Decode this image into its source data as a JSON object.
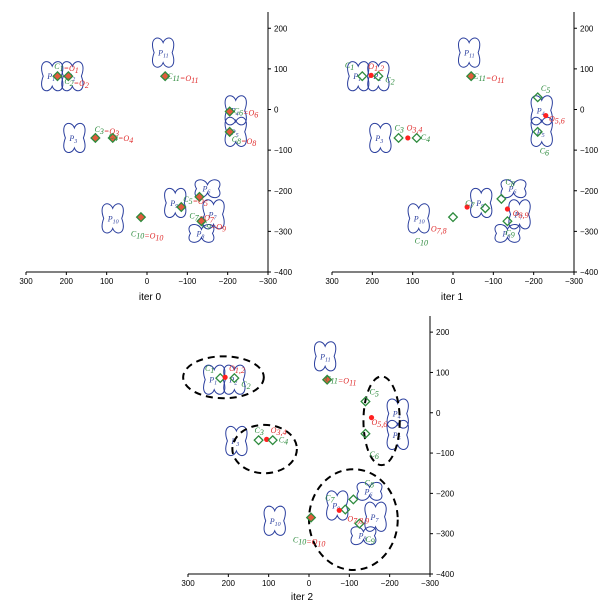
{
  "panels": [
    {
      "caption": "iter 0",
      "xticks": [
        "300",
        "200",
        "100",
        "0",
        "−100",
        "−200",
        "−300"
      ],
      "yticks": [
        "200",
        "100",
        "0",
        "−100",
        "−200",
        "−300",
        "−400"
      ],
      "agents": [
        "P1",
        "P2",
        "P3",
        "P4",
        "P5",
        "P6",
        "P7",
        "P8",
        "P9",
        "P10",
        "P11"
      ],
      "labels": [
        "C1=O1",
        "C2=O2",
        "C3=O3",
        "C4=O4",
        "C5=O5",
        "C6=O6",
        "C7=O7",
        "C8=O8",
        "C9=O9",
        "C10=O10",
        "C11=O11"
      ]
    },
    {
      "caption": "iter 1",
      "xticks": [
        "300",
        "200",
        "100",
        "0",
        "−100",
        "−200",
        "−300"
      ],
      "yticks": [
        "200",
        "100",
        "0",
        "−100",
        "−200",
        "−300",
        "−400"
      ],
      "agents": [
        "P1",
        "P2",
        "P3",
        "P4",
        "P5",
        "P6",
        "P7",
        "P8",
        "P9",
        "P10",
        "P11"
      ],
      "labels": [
        "C1",
        "O1,2",
        "C2",
        "C3",
        "O3,4",
        "C4",
        "C5",
        "O5,6",
        "C6",
        "C7",
        "C8",
        "O7,8",
        "O8,9",
        "C9",
        "C10",
        "C11=O11"
      ]
    },
    {
      "caption": "iter 2",
      "xticks": [
        "300",
        "200",
        "100",
        "0",
        "−100",
        "−200",
        "−300"
      ],
      "yticks": [
        "200",
        "100",
        "0",
        "−100",
        "−200",
        "−300",
        "−400"
      ],
      "agents": [
        "P1",
        "P2",
        "P3",
        "P4",
        "P5",
        "P6",
        "P7",
        "P8",
        "P9",
        "P10",
        "P11"
      ],
      "labels": [
        "C1",
        "O1,2",
        "C2",
        "C3",
        "O3,4",
        "C4",
        "C5",
        "O5,6",
        "C6",
        "C7",
        "C8",
        "O7,8,9",
        "C9",
        "C10=O10",
        "C11=O11"
      ]
    }
  ]
}
